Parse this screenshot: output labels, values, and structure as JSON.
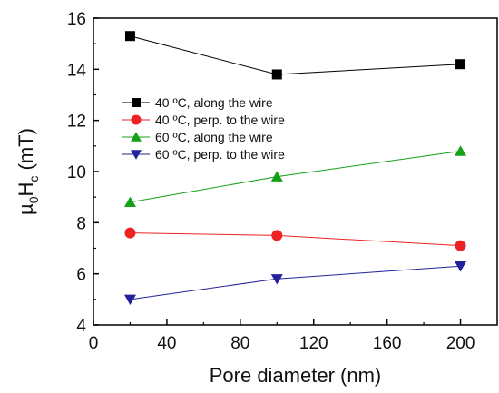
{
  "chart_data": {
    "type": "line",
    "xlabel": "Pore diameter (nm)",
    "ylabel": "µ0Hc (mT)",
    "ylabel_parts": {
      "mu": "µ",
      "sub0": "0",
      "H": "H",
      "subc": "c",
      "unit": " (mT)"
    },
    "xlim": [
      0,
      220
    ],
    "ylim": [
      4,
      16
    ],
    "xticks": [
      0,
      40,
      80,
      120,
      160,
      200
    ],
    "yticks": [
      4,
      6,
      8,
      10,
      12,
      14,
      16
    ],
    "grid": false,
    "legend_position": "upper-left",
    "x": [
      20,
      100,
      200
    ],
    "series": [
      {
        "name": "40 ºC, along the wire",
        "values": [
          15.3,
          13.8,
          14.2
        ],
        "color": "#000000",
        "marker": "square"
      },
      {
        "name": "40 ºC, perp. to the wire",
        "values": [
          7.6,
          7.5,
          7.1
        ],
        "color": "#ee2222",
        "marker": "circle"
      },
      {
        "name": "60 ºC, along the wire",
        "values": [
          8.8,
          9.8,
          10.8
        ],
        "color": "#16a01a",
        "marker": "triangle-up"
      },
      {
        "name": "60 ºC, perp. to the wire",
        "values": [
          5.0,
          5.8,
          6.3
        ],
        "color": "#22229a",
        "marker": "triangle-down"
      }
    ]
  }
}
